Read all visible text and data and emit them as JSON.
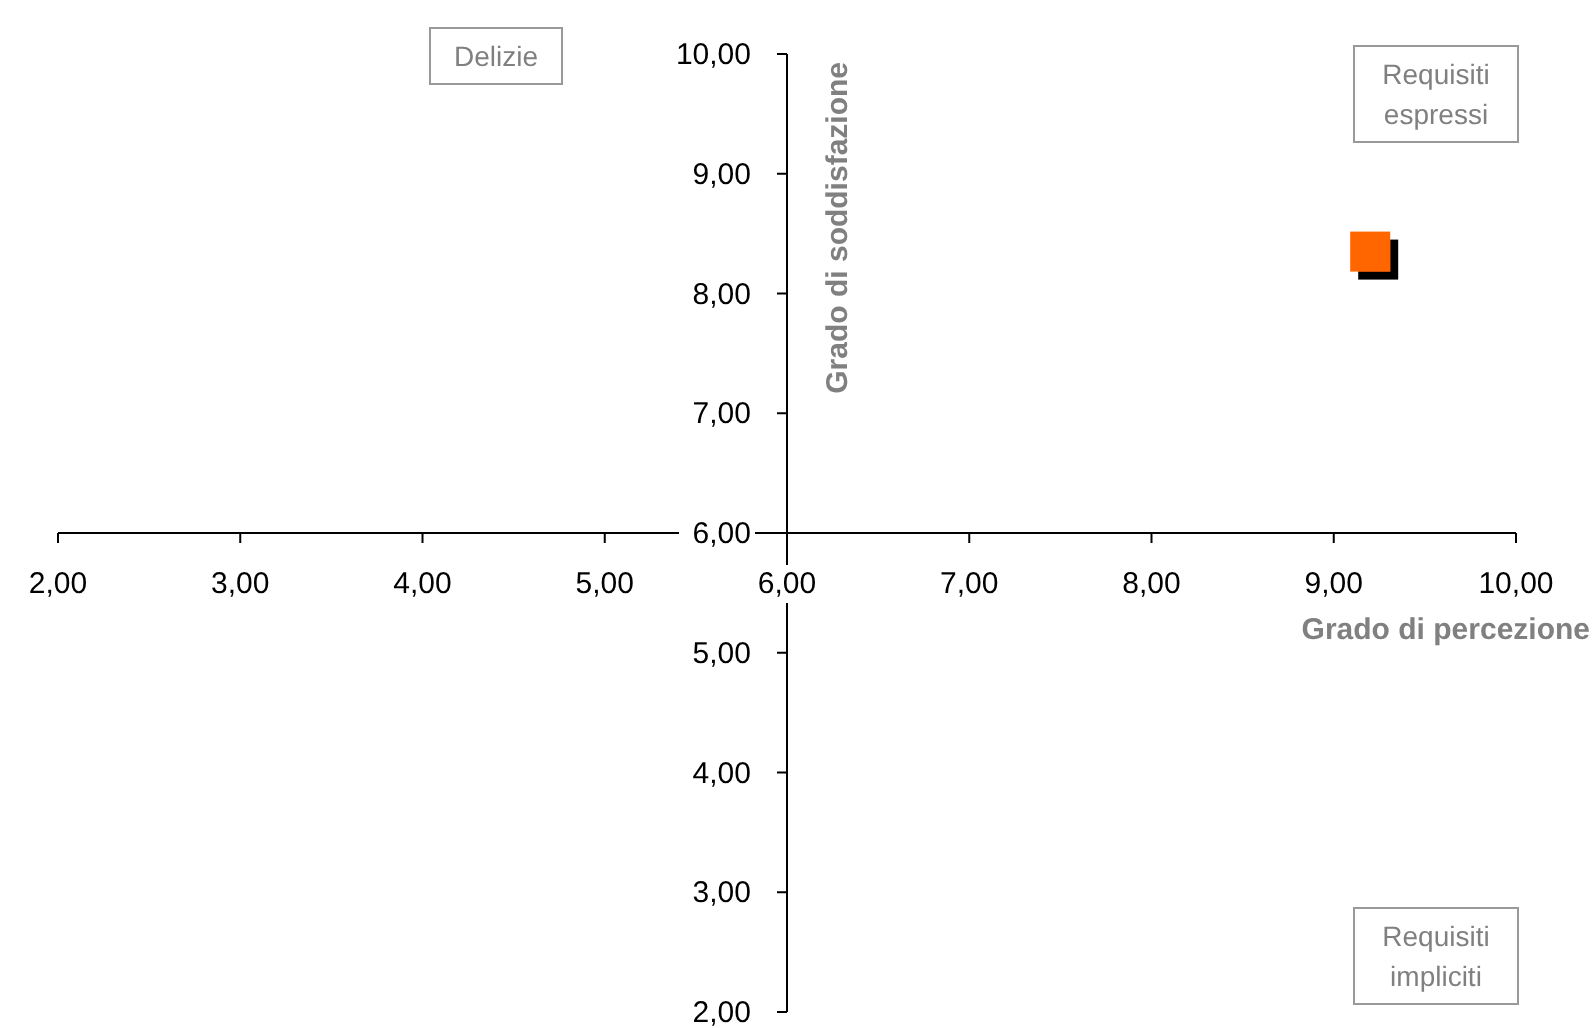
{
  "chart_data": {
    "type": "scatter",
    "xlabel": "Grado di percezione",
    "ylabel": "Grado di soddisfazione",
    "x": [
      9.2
    ],
    "series": [
      {
        "color": "#ff6600",
        "values": [
          8.35
        ]
      }
    ],
    "xlim": [
      2,
      10
    ],
    "ylim": [
      2,
      10
    ],
    "xticks": [
      {
        "value": 2,
        "label": "2,00"
      },
      {
        "value": 3,
        "label": "3,00"
      },
      {
        "value": 4,
        "label": "4,00"
      },
      {
        "value": 5,
        "label": "5,00"
      },
      {
        "value": 6,
        "label": "6,00"
      },
      {
        "value": 7,
        "label": "7,00"
      },
      {
        "value": 8,
        "label": "8,00"
      },
      {
        "value": 9,
        "label": "9,00"
      },
      {
        "value": 10,
        "label": "10,00"
      }
    ],
    "yticks": [
      {
        "value": 2,
        "label": "2,00"
      },
      {
        "value": 3,
        "label": "3,00"
      },
      {
        "value": 4,
        "label": "4,00"
      },
      {
        "value": 5,
        "label": "5,00"
      },
      {
        "value": 6,
        "label": "6,00"
      },
      {
        "value": 7,
        "label": "7,00"
      },
      {
        "value": 8,
        "label": "8,00"
      },
      {
        "value": 9,
        "label": "9,00"
      },
      {
        "value": 10,
        "label": "10,00"
      }
    ],
    "marker": "square",
    "annotations": [
      "Delizie",
      "Requisiti\nespressi",
      "Requisiti\nimpliciti"
    ]
  }
}
